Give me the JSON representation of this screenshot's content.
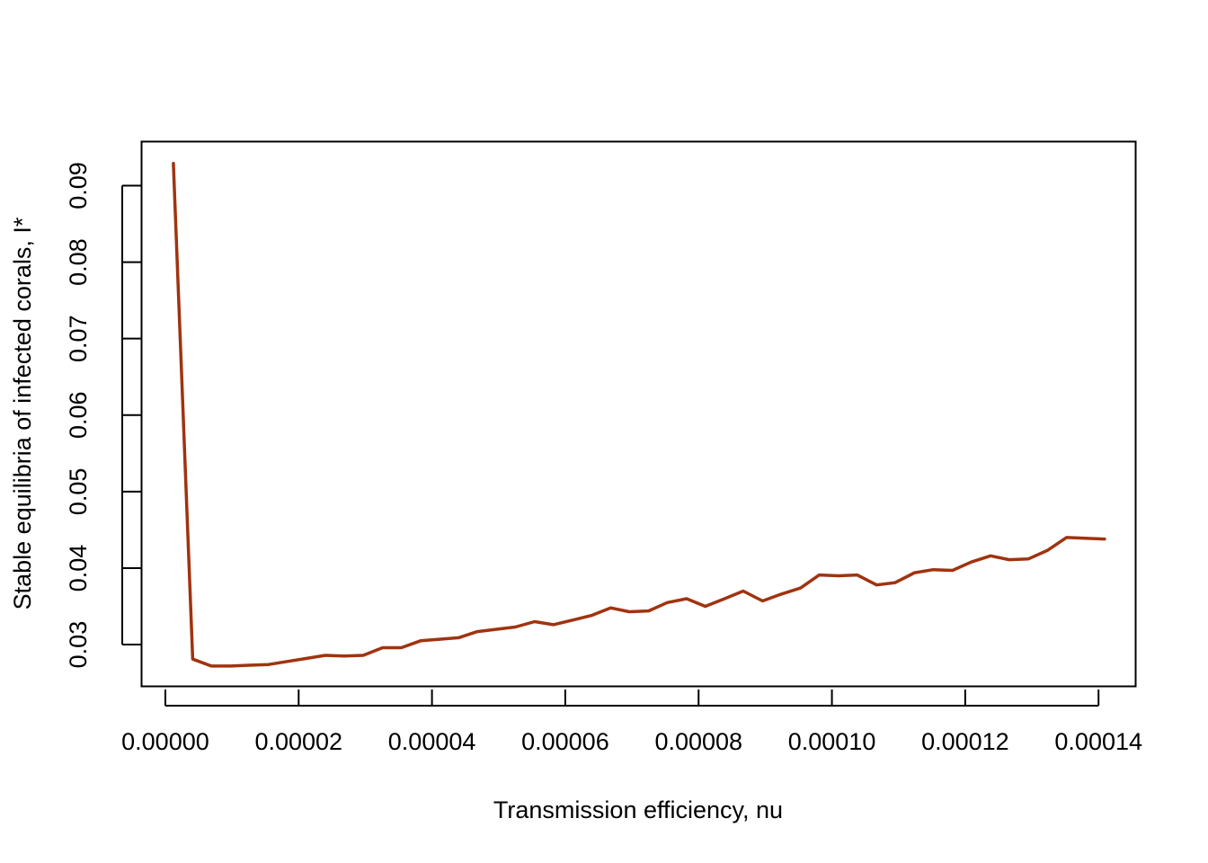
{
  "chart_data": {
    "type": "line",
    "title": "",
    "xlabel": "Transmission efficiency, nu",
    "ylabel": "Stable equilibria of infected corals, I*",
    "xlim": [
      -3.5e-06,
      0.0001455
    ],
    "ylim": [
      0.0246,
      0.0957
    ],
    "xticks": [
      0,
      2e-05,
      4e-05,
      6e-05,
      8e-05,
      0.0001,
      0.00012,
      0.00014
    ],
    "xtick_labels": [
      "0.00000",
      "0.00002",
      "0.00004",
      "0.00006",
      "0.00008",
      "0.00010",
      "0.00012",
      "0.00014"
    ],
    "yticks": [
      0.03,
      0.04,
      0.05,
      0.06,
      0.07,
      0.08,
      0.09
    ],
    "ytick_labels": [
      "0.03",
      "0.04",
      "0.05",
      "0.06",
      "0.07",
      "0.08",
      "0.09"
    ],
    "grid": false,
    "line_color": "#A0330F",
    "series": [
      {
        "x": [
          1.2e-06,
          4.1e-06,
          6.9e-06,
          9.8e-06,
          1.26e-05,
          1.55e-05,
          1.83e-05,
          2.12e-05,
          2.4e-05,
          2.69e-05,
          2.97e-05,
          3.26e-05,
          3.54e-05,
          3.83e-05,
          4.11e-05,
          4.4e-05,
          4.68e-05,
          4.97e-05,
          5.25e-05,
          5.54e-05,
          5.82e-05,
          6.11e-05,
          6.39e-05,
          6.68e-05,
          6.96e-05,
          7.25e-05,
          7.53e-05,
          7.82e-05,
          8.1e-05,
          8.39e-05,
          8.67e-05,
          8.96e-05,
          9.24e-05,
          9.53e-05,
          9.81e-05,
          0.000101,
          0.0001038,
          0.0001067,
          0.0001095,
          0.0001124,
          0.0001152,
          0.0001181,
          0.0001209,
          0.0001238,
          0.0001266,
          0.0001295,
          0.0001323,
          0.0001352,
          0.000138,
          0.0001409
        ],
        "values": [
          0.0929,
          0.0281,
          0.0272,
          0.0272,
          0.0273,
          0.0274,
          0.0278,
          0.0282,
          0.0286,
          0.0285,
          0.0286,
          0.0296,
          0.0296,
          0.0305,
          0.0307,
          0.0309,
          0.0317,
          0.032,
          0.0323,
          0.033,
          0.0326,
          0.0332,
          0.0338,
          0.0348,
          0.0343,
          0.0344,
          0.0355,
          0.036,
          0.035,
          0.036,
          0.037,
          0.0357,
          0.0366,
          0.0374,
          0.0391,
          0.039,
          0.0391,
          0.0378,
          0.0381,
          0.0394,
          0.0398,
          0.0397,
          0.0408,
          0.0416,
          0.0411,
          0.0412,
          0.0423,
          0.044,
          0.0439,
          0.0438
        ]
      }
    ]
  }
}
